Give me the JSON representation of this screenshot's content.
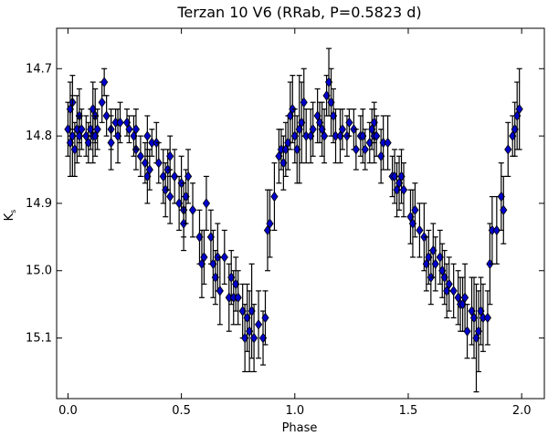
{
  "chart_data": {
    "type": "scatter",
    "title": "Terzan 10 V6 (RRab, P=0.5823 d)",
    "xlabel": "Phase",
    "ylabel": "K",
    "ylabel_subscript": "s",
    "xlim": [
      -0.05,
      2.1
    ],
    "ylim": [
      15.19,
      14.64
    ],
    "y_inverted": true,
    "grid": false,
    "legend": "none",
    "marker": "diamond",
    "marker_color": "#0000cc",
    "errorbar_color": "#000000",
    "xticks": [
      0.0,
      0.5,
      1.0,
      1.5,
      2.0
    ],
    "xtick_labels": [
      "0.0",
      "0.5",
      "1.0",
      "1.5",
      "2.0"
    ],
    "yticks": [
      14.7,
      14.8,
      14.9,
      15.0,
      15.1
    ],
    "ytick_labels": [
      "14.7",
      "14.8",
      "14.9",
      "15.0",
      "15.1"
    ],
    "phase": [
      0.0,
      0.01,
      0.01,
      0.02,
      0.02,
      0.03,
      0.04,
      0.05,
      0.05,
      0.06,
      0.08,
      0.09,
      0.1,
      0.11,
      0.11,
      0.12,
      0.12,
      0.13,
      0.15,
      0.16,
      0.17,
      0.19,
      0.19,
      0.21,
      0.22,
      0.23,
      0.26,
      0.27,
      0.29,
      0.3,
      0.3,
      0.32,
      0.34,
      0.35,
      0.35,
      0.36,
      0.37,
      0.39,
      0.4,
      0.42,
      0.43,
      0.44,
      0.45,
      0.45,
      0.47,
      0.49,
      0.5,
      0.51,
      0.51,
      0.52,
      0.53,
      0.55,
      0.58,
      0.59,
      0.6,
      0.61,
      0.63,
      0.64,
      0.65,
      0.66,
      0.67,
      0.69,
      0.71,
      0.72,
      0.73,
      0.74,
      0.75,
      0.77,
      0.78,
      0.79,
      0.8,
      0.81,
      0.82,
      0.84,
      0.86,
      0.87,
      0.88,
      0.89,
      0.91,
      0.93,
      0.94,
      0.95,
      0.96,
      0.97,
      0.98,
      0.99,
      1.0,
      1.01,
      1.02,
      1.03,
      1.04,
      1.05,
      1.07,
      1.08,
      1.1,
      1.11,
      1.12,
      1.13,
      1.14,
      1.15,
      1.16,
      1.17,
      1.18,
      1.2,
      1.21,
      1.23,
      1.24,
      1.26,
      1.27,
      1.29,
      1.3,
      1.31,
      1.33,
      1.34,
      1.35,
      1.35,
      1.36,
      1.38,
      1.39,
      1.41,
      1.43,
      1.44,
      1.45,
      1.46,
      1.47,
      1.48,
      1.51,
      1.52,
      1.53,
      1.55,
      1.57,
      1.58,
      1.59,
      1.6,
      1.61,
      1.62,
      1.64,
      1.65,
      1.66,
      1.67,
      1.68,
      1.7,
      1.72,
      1.73,
      1.74,
      1.75,
      1.76,
      1.78,
      1.79,
      1.8,
      1.81,
      1.82,
      1.83,
      1.85,
      1.86,
      1.87,
      1.89,
      1.91,
      1.92,
      1.94,
      1.96,
      1.97,
      1.98,
      1.99
    ],
    "ks": [
      14.79,
      14.81,
      14.76,
      14.75,
      14.8,
      14.82,
      14.79,
      14.77,
      14.8,
      14.79,
      14.8,
      14.81,
      14.79,
      14.8,
      14.76,
      14.77,
      14.8,
      14.79,
      14.75,
      14.72,
      14.77,
      14.79,
      14.81,
      14.78,
      14.8,
      14.78,
      14.78,
      14.79,
      14.8,
      14.82,
      14.79,
      14.83,
      14.84,
      14.86,
      14.8,
      14.85,
      14.81,
      14.81,
      14.84,
      14.86,
      14.88,
      14.85,
      14.83,
      14.89,
      14.86,
      14.9,
      14.87,
      14.91,
      14.93,
      14.89,
      14.86,
      14.91,
      14.95,
      14.99,
      14.98,
      14.9,
      14.95,
      14.99,
      15.01,
      14.98,
      15.03,
      14.98,
      15.04,
      15.01,
      15.04,
      15.02,
      15.04,
      15.06,
      15.1,
      15.07,
      15.09,
      15.06,
      15.1,
      15.08,
      15.1,
      15.07,
      14.94,
      14.93,
      14.89,
      14.83,
      14.82,
      14.84,
      14.82,
      14.81,
      14.77,
      14.76,
      14.8,
      14.82,
      14.79,
      14.78,
      14.75,
      14.8,
      14.8,
      14.79,
      14.77,
      14.78,
      14.79,
      14.8,
      14.74,
      14.72,
      14.75,
      14.77,
      14.8,
      14.8,
      14.79,
      14.8,
      14.78,
      14.79,
      14.82,
      14.8,
      14.8,
      14.82,
      14.81,
      14.79,
      14.8,
      14.78,
      14.8,
      14.83,
      14.81,
      14.81,
      14.86,
      14.86,
      14.88,
      14.87,
      14.86,
      14.88,
      14.92,
      14.93,
      14.91,
      14.94,
      14.95,
      14.99,
      14.98,
      15.01,
      14.97,
      14.99,
      14.98,
      15.0,
      15.01,
      15.03,
      15.02,
      15.03,
      15.04,
      15.05,
      15.05,
      15.04,
      15.09,
      15.06,
      15.07,
      15.1,
      15.09,
      15.06,
      15.07,
      15.07,
      14.99,
      14.94,
      14.94,
      14.89,
      14.91,
      14.82,
      14.8,
      14.79,
      14.77,
      14.76
    ],
    "err": [
      0.04,
      0.05,
      0.04,
      0.04,
      0.06,
      0.04,
      0.05,
      0.04,
      0.03,
      0.03,
      0.03,
      0.03,
      0.03,
      0.04,
      0.04,
      0.04,
      0.03,
      0.03,
      0.03,
      0.02,
      0.03,
      0.03,
      0.04,
      0.02,
      0.04,
      0.03,
      0.02,
      0.02,
      0.03,
      0.03,
      0.03,
      0.03,
      0.03,
      0.04,
      0.03,
      0.03,
      0.02,
      0.03,
      0.03,
      0.04,
      0.04,
      0.03,
      0.03,
      0.04,
      0.04,
      0.04,
      0.04,
      0.04,
      0.04,
      0.04,
      0.04,
      0.04,
      0.04,
      0.05,
      0.04,
      0.04,
      0.04,
      0.05,
      0.04,
      0.05,
      0.05,
      0.04,
      0.05,
      0.04,
      0.04,
      0.04,
      0.04,
      0.04,
      0.05,
      0.05,
      0.06,
      0.07,
      0.05,
      0.05,
      0.04,
      0.04,
      0.06,
      0.05,
      0.05,
      0.04,
      0.03,
      0.04,
      0.04,
      0.04,
      0.05,
      0.05,
      0.04,
      0.05,
      0.08,
      0.06,
      0.05,
      0.04,
      0.04,
      0.04,
      0.04,
      0.03,
      0.04,
      0.04,
      0.03,
      0.05,
      0.05,
      0.04,
      0.04,
      0.04,
      0.03,
      0.03,
      0.02,
      0.03,
      0.03,
      0.03,
      0.04,
      0.03,
      0.03,
      0.03,
      0.04,
      0.03,
      0.03,
      0.04,
      0.04,
      0.04,
      0.03,
      0.04,
      0.04,
      0.04,
      0.04,
      0.04,
      0.04,
      0.05,
      0.04,
      0.04,
      0.05,
      0.04,
      0.04,
      0.04,
      0.04,
      0.04,
      0.04,
      0.04,
      0.04,
      0.04,
      0.04,
      0.04,
      0.04,
      0.04,
      0.04,
      0.05,
      0.04,
      0.05,
      0.06,
      0.08,
      0.06,
      0.05,
      0.05,
      0.04,
      0.06,
      0.05,
      0.05,
      0.05,
      0.05,
      0.04,
      0.03,
      0.04,
      0.05,
      0.06
    ]
  }
}
